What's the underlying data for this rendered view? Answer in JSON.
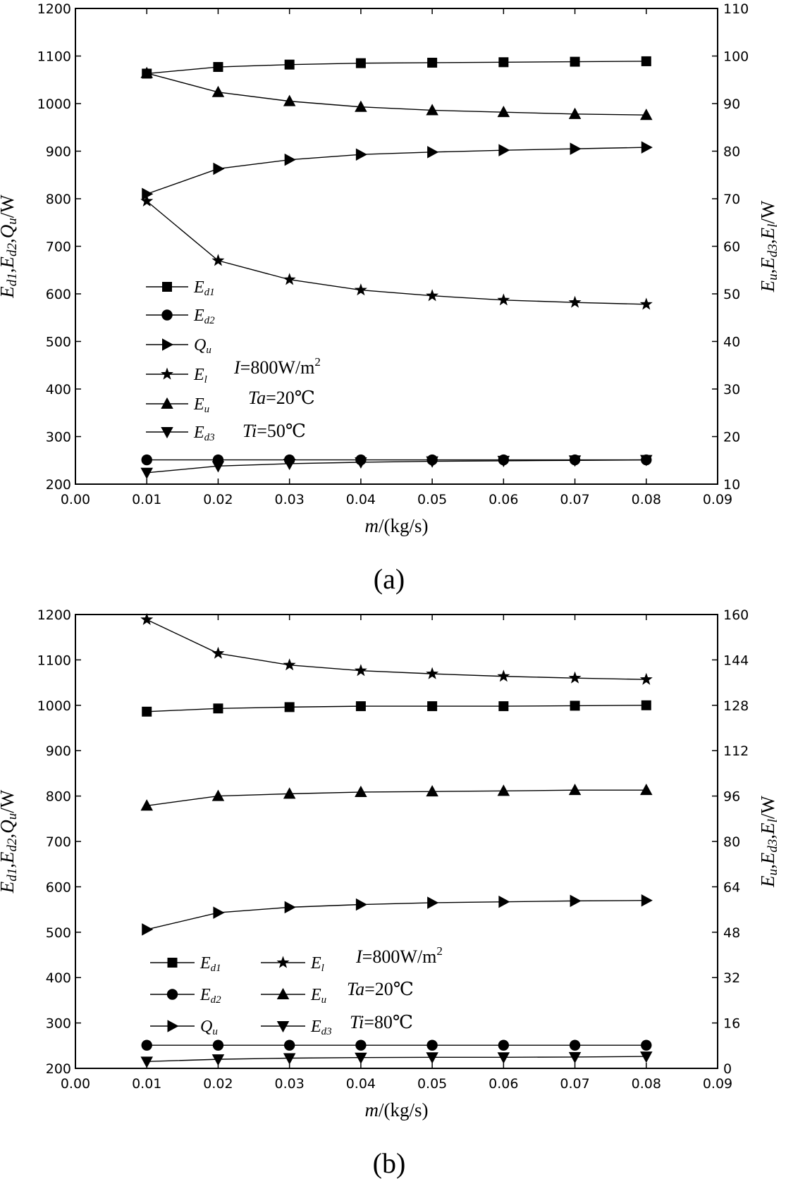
{
  "figure": {
    "panels": [
      {
        "id": "a",
        "label": "(a)"
      },
      {
        "id": "b",
        "label": "(b)"
      }
    ]
  },
  "chart_data": [
    {
      "type": "line",
      "panel": "(a)",
      "xlabel": "m/(kg/s)",
      "ylabel_left": "Ed1,Ed2,Qu/W",
      "ylabel_right": "Eu,Ed3,El/W",
      "x": [
        0.01,
        0.02,
        0.03,
        0.04,
        0.05,
        0.06,
        0.07,
        0.08
      ],
      "xlim": [
        0.0,
        0.09
      ],
      "xticks": [
        "0.00",
        "0.01",
        "0.02",
        "0.03",
        "0.04",
        "0.05",
        "0.06",
        "0.07",
        "0.08",
        "0.09"
      ],
      "ylim_left": [
        200,
        1200
      ],
      "yticks_left": [
        "200",
        "300",
        "400",
        "500",
        "600",
        "700",
        "800",
        "900",
        "1000",
        "1100",
        "1200"
      ],
      "ylim_right": [
        10,
        110
      ],
      "yticks_right": [
        "10",
        "20",
        "30",
        "40",
        "50",
        "60",
        "70",
        "80",
        "90",
        "100",
        "110"
      ],
      "series": [
        {
          "key": "Ed1",
          "name": "E",
          "sub": "d1",
          "marker": "square",
          "axis": "left",
          "values": [
            1063,
            1077,
            1082,
            1085,
            1086,
            1087,
            1088,
            1089
          ]
        },
        {
          "key": "Ed2",
          "name": "E",
          "sub": "d2",
          "marker": "circle",
          "axis": "left",
          "values": [
            251,
            251,
            251,
            251,
            251,
            251,
            251,
            251
          ]
        },
        {
          "key": "Qu",
          "name": "Q",
          "sub": "u",
          "marker": "tri-right",
          "axis": "left",
          "values": [
            810,
            863,
            882,
            893,
            898,
            902,
            905,
            908
          ]
        },
        {
          "key": "El",
          "name": "E",
          "sub": "l",
          "marker": "star",
          "axis": "right",
          "values": [
            69.5,
            57.0,
            53.0,
            50.8,
            49.6,
            48.7,
            48.2,
            47.8
          ]
        },
        {
          "key": "Eu",
          "name": "E",
          "sub": "u",
          "marker": "tri-up",
          "axis": "right",
          "values": [
            96.4,
            92.4,
            90.5,
            89.3,
            88.6,
            88.2,
            87.8,
            87.6
          ]
        },
        {
          "key": "Ed3",
          "name": "E",
          "sub": "d3",
          "marker": "tri-down",
          "axis": "right",
          "values": [
            12.4,
            13.8,
            14.3,
            14.6,
            14.8,
            14.9,
            15.0,
            15.1
          ]
        }
      ],
      "legend_layout": "single-column",
      "conditions": [
        {
          "symbol": "I",
          "value": "=800W/m",
          "sup": "2"
        },
        {
          "symbol": "Ta",
          "value": "=20℃"
        },
        {
          "symbol": "Ti",
          "value": "=50℃"
        }
      ]
    },
    {
      "type": "line",
      "panel": "(b)",
      "xlabel": "m/(kg/s)",
      "ylabel_left": "Ed1,Ed2,Qu/W",
      "ylabel_right": "Eu,Ed3,El/W",
      "x": [
        0.01,
        0.02,
        0.03,
        0.04,
        0.05,
        0.06,
        0.07,
        0.08
      ],
      "xlim": [
        0.0,
        0.09
      ],
      "xticks": [
        "0.00",
        "0.01",
        "0.02",
        "0.03",
        "0.04",
        "0.05",
        "0.06",
        "0.07",
        "0.08",
        "0.09"
      ],
      "ylim_left": [
        200,
        1200
      ],
      "yticks_left": [
        "200",
        "300",
        "400",
        "500",
        "600",
        "700",
        "800",
        "900",
        "1000",
        "1100",
        "1200"
      ],
      "ylim_right": [
        0,
        160
      ],
      "yticks_right": [
        "0",
        "16",
        "32",
        "48",
        "64",
        "80",
        "96",
        "112",
        "128",
        "144",
        "160"
      ],
      "series": [
        {
          "key": "Ed1",
          "name": "E",
          "sub": "d1",
          "marker": "square",
          "axis": "left",
          "values": [
            986,
            993,
            996,
            998,
            998,
            998,
            999,
            1000
          ]
        },
        {
          "key": "Ed2",
          "name": "E",
          "sub": "d2",
          "marker": "circle",
          "axis": "left",
          "values": [
            251,
            251,
            251,
            251,
            251,
            251,
            251,
            251
          ]
        },
        {
          "key": "Qu",
          "name": "Q",
          "sub": "u",
          "marker": "tri-right",
          "axis": "left",
          "values": [
            506,
            543,
            555,
            561,
            565,
            567,
            569,
            570
          ]
        },
        {
          "key": "El",
          "name": "E",
          "sub": "l",
          "marker": "star",
          "axis": "right",
          "values": [
            158.2,
            146.3,
            142.2,
            140.2,
            139.1,
            138.2,
            137.6,
            137.1
          ]
        },
        {
          "key": "Eu",
          "name": "E",
          "sub": "u",
          "marker": "tri-up",
          "axis": "right",
          "values": [
            92.6,
            96.0,
            96.8,
            97.4,
            97.6,
            97.8,
            98.1,
            98.1
          ]
        },
        {
          "key": "Ed3",
          "name": "E",
          "sub": "d3",
          "marker": "tri-down",
          "axis": "right",
          "values": [
            2.4,
            3.2,
            3.6,
            3.8,
            3.9,
            3.9,
            4.0,
            4.2
          ]
        }
      ],
      "legend_layout": "two-column",
      "conditions": [
        {
          "symbol": "I",
          "value": "=800W/m",
          "sup": "2"
        },
        {
          "symbol": "Ta",
          "value": "=20℃"
        },
        {
          "symbol": "Ti",
          "value": "=80℃"
        }
      ]
    }
  ]
}
